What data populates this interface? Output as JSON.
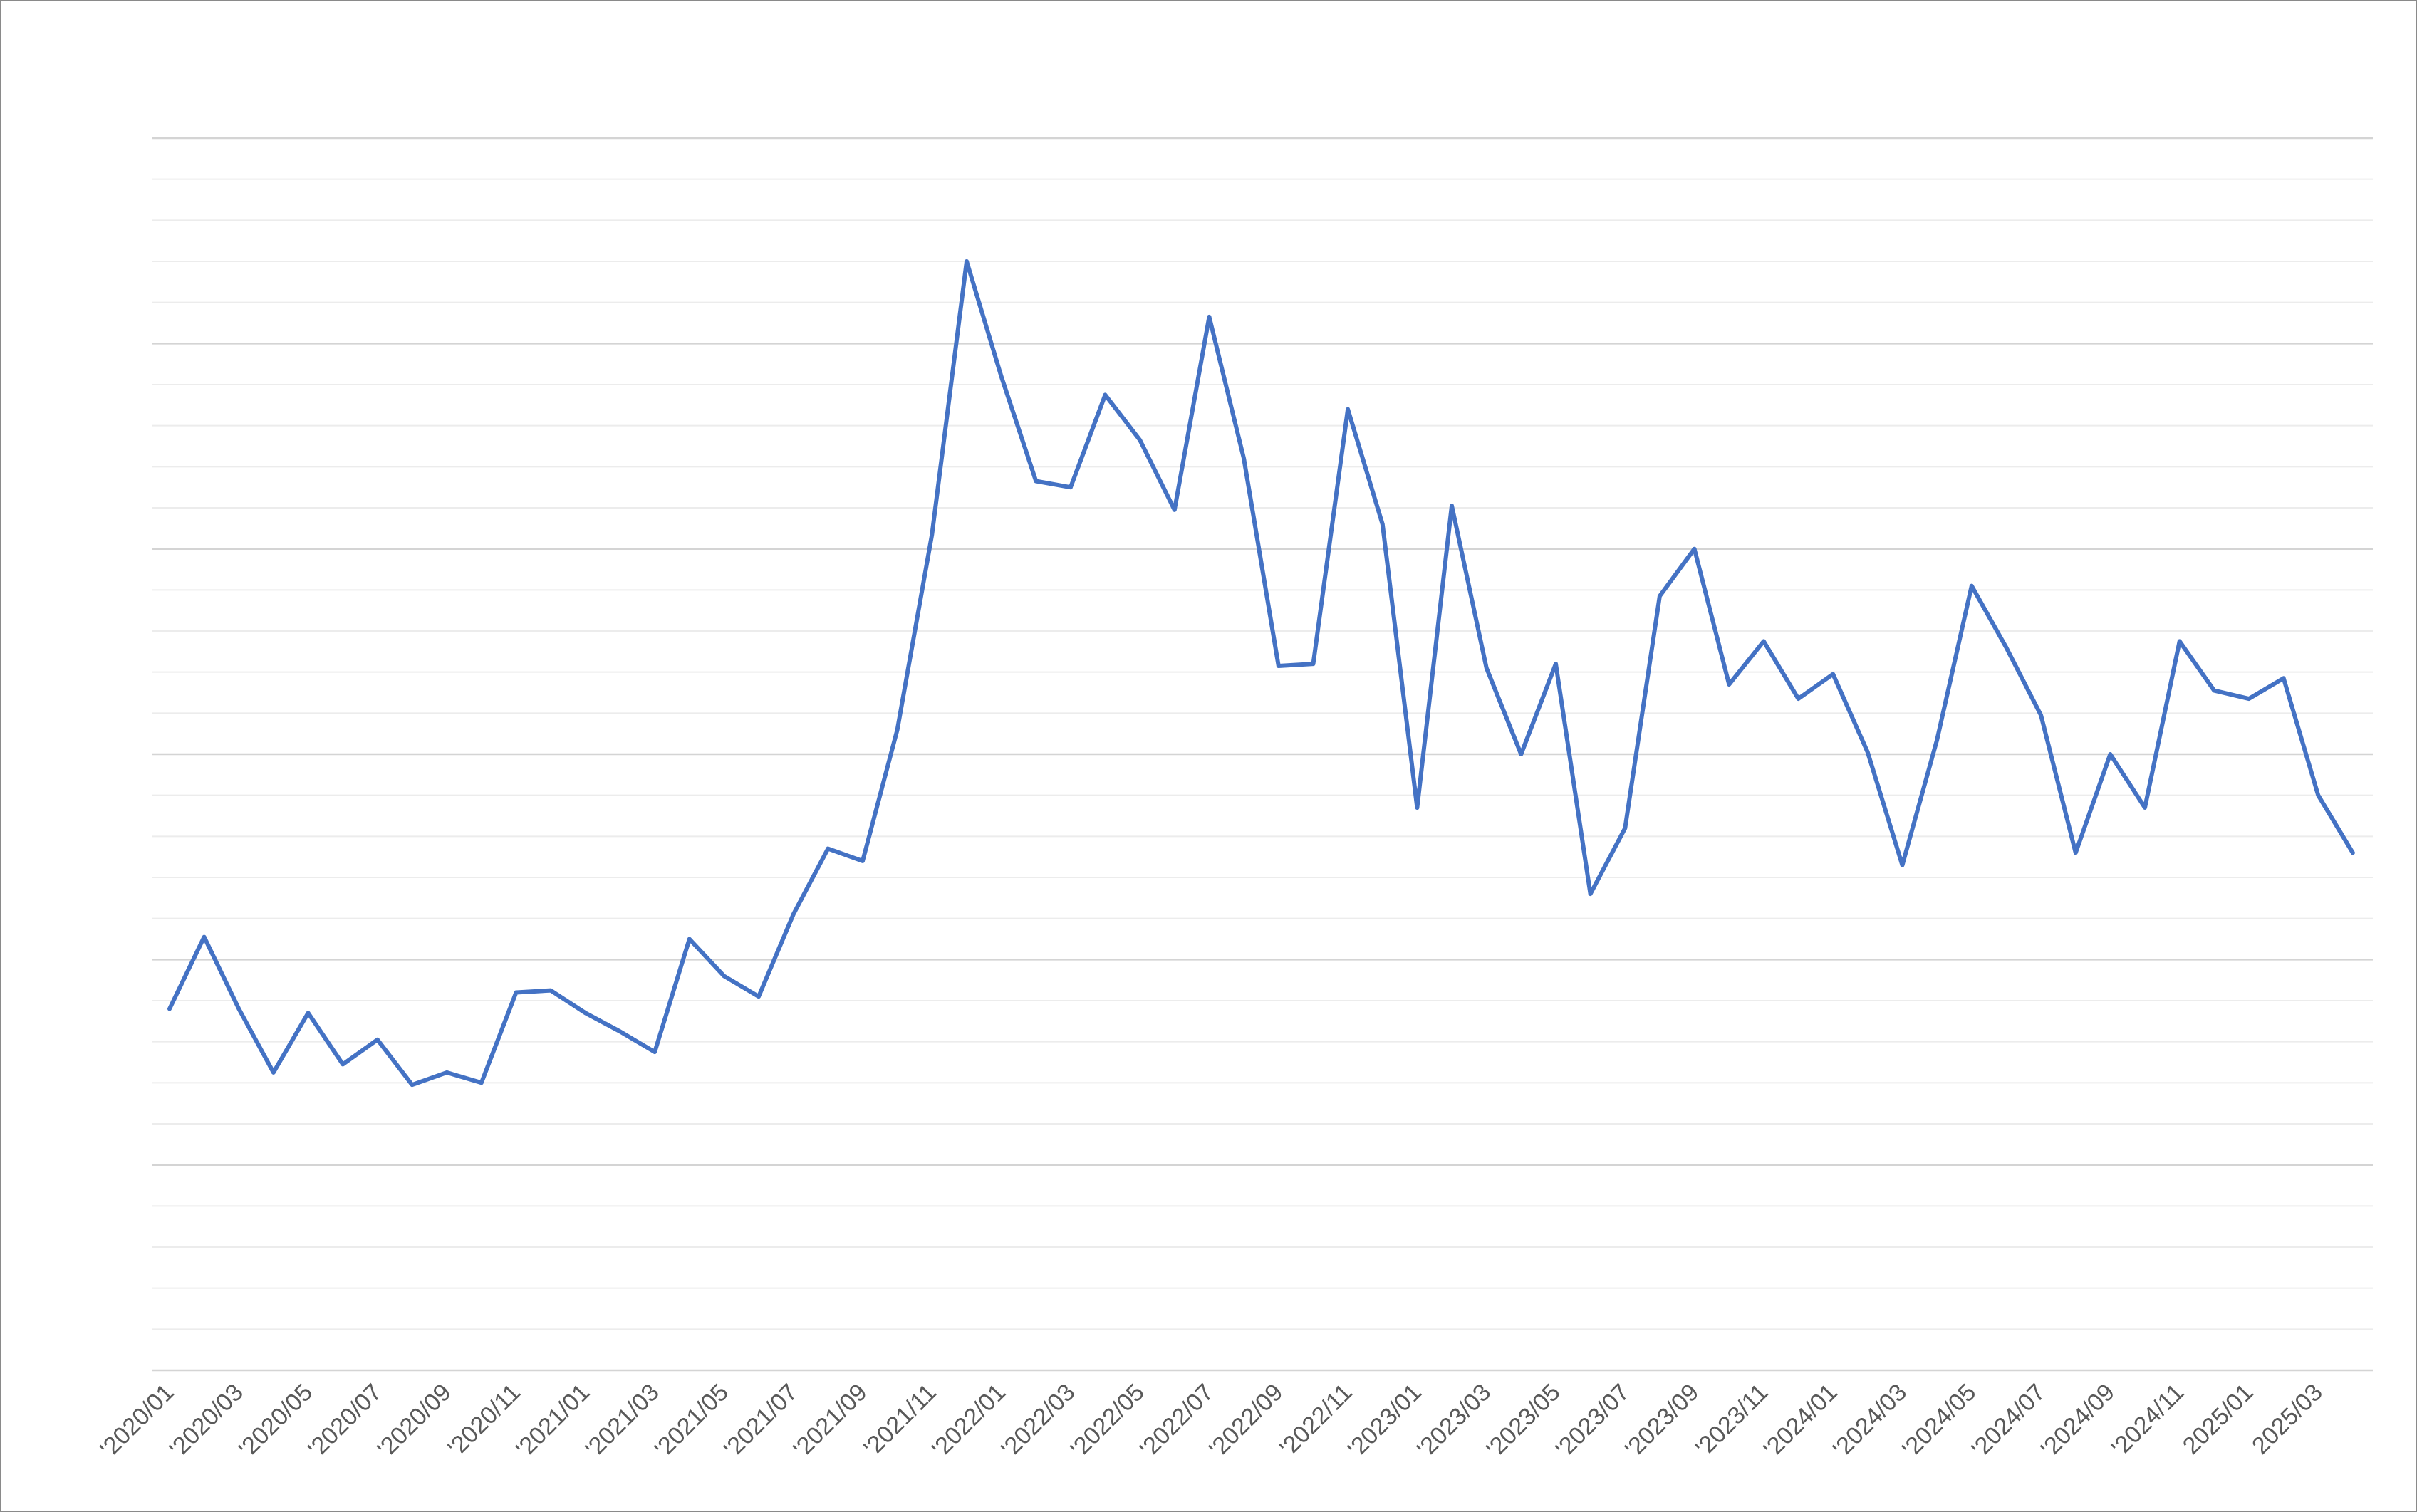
{
  "colors": {
    "series": "#4472C4",
    "grid_major": "#d4d4d4",
    "grid_minor": "#ececec",
    "tick_text": "#595959",
    "frame": "#8a8a8a"
  },
  "chart_data": {
    "type": "line",
    "title": "",
    "xlabel": "",
    "ylabel": "",
    "y_axis_labels_shown": false,
    "ylim": [
      0,
      30
    ],
    "grid": {
      "major_step": 5,
      "minor_step": 1
    },
    "legend": "none",
    "x": [
      "'2020/01",
      "'2020/02",
      "'2020/03",
      "'2020/04",
      "'2020/05",
      "'2020/06",
      "'2020/07",
      "'2020/08",
      "'2020/09",
      "'2020/10",
      "'2020/11",
      "'2020/12",
      "'2021/01",
      "'2021/02",
      "'2021/03",
      "'2021/04",
      "'2021/05",
      "'2021/06",
      "'2021/07",
      "'2021/08",
      "'2021/09",
      "'2021/10",
      "'2021/11",
      "'2021/12",
      "'2022/01",
      "'2022/02",
      "'2022/03",
      "'2022/04",
      "'2022/05",
      "'2022/06",
      "'2022/07",
      "'2022/08",
      "'2022/09",
      "'2022/10",
      "'2022/11",
      "'2022/12",
      "'2023/01",
      "'2023/02",
      "'2023/03",
      "'2023/04",
      "'2023/05",
      "'2023/06",
      "'2023/07",
      "'2023/08",
      "'2023/09",
      "'2023/10",
      "'2023/11",
      "'2023/12",
      "'2024/01",
      "'2024/02",
      "'2024/03",
      "'2024/04",
      "'2024/05",
      "'2024/06",
      "'2024/07",
      "'2024/08",
      "'2024/09",
      "'2024/10",
      "'2024/11",
      "'2024/12",
      "2025/01",
      "2025/02",
      "2025/03",
      "2025/04"
    ],
    "tick_labels": [
      "'2020/01",
      "'2020/03",
      "'2020/05",
      "'2020/07",
      "'2020/09",
      "'2020/11",
      "'2021/01",
      "'2021/03",
      "'2021/05",
      "'2021/07",
      "'2021/09",
      "'2021/11",
      "'2022/01",
      "'2022/03",
      "'2022/05",
      "'2022/07",
      "'2022/09",
      "'2022/11",
      "'2023/01",
      "'2023/03",
      "'2023/05",
      "'2023/07",
      "'2023/09",
      "'2023/11",
      "'2024/01",
      "'2024/03",
      "'2024/05",
      "'2024/07",
      "'2024/09",
      "'2024/11",
      "2025/01",
      "2025/03"
    ],
    "series": [
      {
        "values": [
          8.8,
          10.55,
          8.8,
          7.25,
          8.7,
          7.45,
          8.05,
          6.95,
          7.25,
          7.0,
          9.2,
          9.25,
          8.7,
          8.25,
          7.75,
          10.5,
          9.6,
          9.1,
          11.1,
          12.7,
          12.4,
          15.6,
          20.35,
          27.0,
          24.2,
          21.65,
          21.5,
          23.75,
          22.65,
          20.95,
          25.65,
          22.2,
          17.15,
          17.2,
          23.4,
          20.6,
          13.7,
          21.05,
          17.1,
          15.0,
          17.2,
          11.6,
          13.2,
          18.85,
          20.0,
          16.7,
          17.75,
          16.35,
          16.95,
          15.05,
          12.3,
          15.35,
          19.1,
          17.6,
          15.95,
          12.6,
          15.0,
          13.7,
          17.75,
          16.55,
          16.35,
          16.85,
          14.0,
          12.6
        ]
      }
    ]
  }
}
